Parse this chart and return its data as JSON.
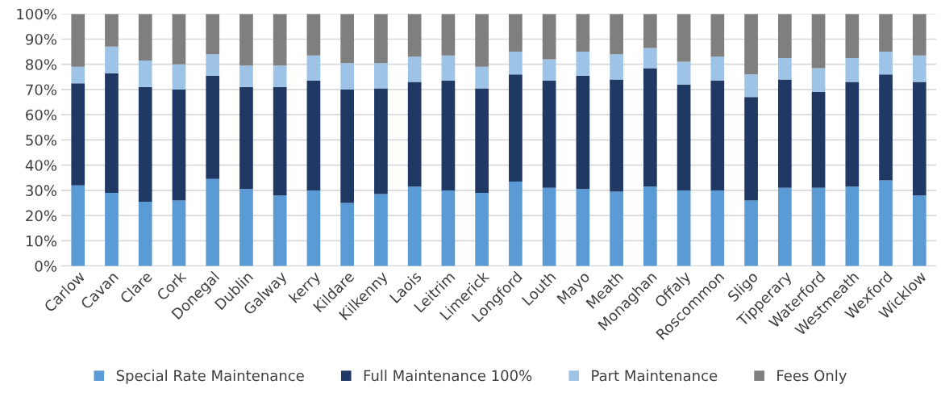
{
  "chart_data": {
    "type": "bar",
    "stacked": true,
    "categories": [
      "Carlow",
      "Cavan",
      "Clare",
      "Cork",
      "Donegal",
      "Dublin",
      "Galway",
      "kerry",
      "Kildare",
      "Kilkenny",
      "Laois",
      "Leitrim",
      "Limerick",
      "Longford",
      "Louth",
      "Mayo",
      "Meath",
      "Monaghan",
      "Offaly",
      "Roscommon",
      "Sligo",
      "Tipperary",
      "Waterford",
      "Westmeath",
      "Wexford",
      "Wicklow"
    ],
    "series": [
      {
        "name": "Special Rate Maintenance",
        "color": "#5b9bd5",
        "values": [
          32,
          29,
          25.5,
          26,
          34.5,
          30.5,
          28,
          30,
          25,
          28.5,
          31.5,
          30,
          29,
          33.5,
          31,
          30.5,
          29.5,
          31.5,
          30,
          30,
          26,
          31,
          31,
          31.5,
          34,
          28
        ]
      },
      {
        "name": "Full Maintenance 100%",
        "color": "#203864",
        "values": [
          40.5,
          47.5,
          45.5,
          44,
          41,
          40.5,
          43,
          43.5,
          45,
          42,
          41.5,
          43.5,
          41.5,
          42.5,
          42.5,
          45,
          44.5,
          47,
          42,
          43.5,
          41,
          43,
          38,
          41.5,
          42,
          45
        ]
      },
      {
        "name": "Part Maintenance",
        "color": "#9dc3e6",
        "values": [
          6.5,
          10.5,
          10.5,
          10,
          8.5,
          8.5,
          8.5,
          10,
          10.5,
          10,
          10,
          10,
          8.5,
          9,
          8.5,
          9.5,
          10,
          8,
          9,
          9.5,
          9,
          8.5,
          9.5,
          9.5,
          9,
          10.5
        ]
      },
      {
        "name": "Fees Only",
        "color": "#7f7f7f",
        "values": [
          21,
          13,
          18.5,
          20,
          16,
          20.5,
          20.5,
          16.5,
          19.5,
          19.5,
          17,
          16.5,
          21,
          15,
          18,
          15,
          16,
          13.5,
          19,
          17,
          24,
          17.5,
          21.5,
          17.5,
          15,
          16.5
        ]
      }
    ],
    "ylim": [
      0,
      100
    ],
    "yticks": [
      {
        "value": 0,
        "label": "0%"
      },
      {
        "value": 10,
        "label": "10%"
      },
      {
        "value": 20,
        "label": "20%"
      },
      {
        "value": 30,
        "label": "30%"
      },
      {
        "value": 40,
        "label": "40%"
      },
      {
        "value": 50,
        "label": "50%"
      },
      {
        "value": 60,
        "label": "60%"
      },
      {
        "value": 70,
        "label": "70%"
      },
      {
        "value": 80,
        "label": "80%"
      },
      {
        "value": 90,
        "label": "90%"
      },
      {
        "value": 100,
        "label": "100%"
      }
    ],
    "grid": "y",
    "legend": "bottom"
  }
}
